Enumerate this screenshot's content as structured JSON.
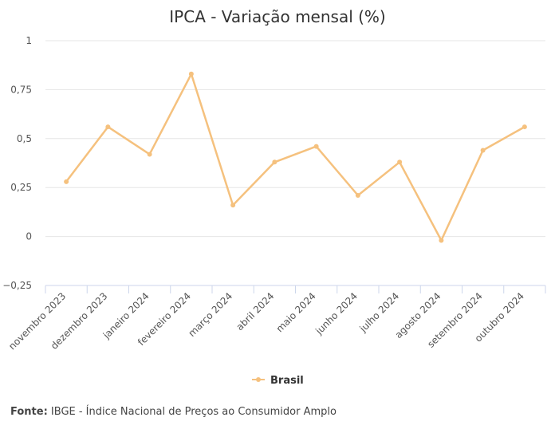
{
  "chart_data": {
    "type": "line",
    "title": "IPCA - Variação mensal (%)",
    "xlabel": "",
    "ylabel": "",
    "categories": [
      "novembro 2023",
      "dezembro 2023",
      "janeiro 2024",
      "fevereiro 2024",
      "março 2024",
      "abril 2024",
      "maio 2024",
      "junho 2024",
      "julho 2024",
      "agosto 2024",
      "setembro 2024",
      "outubro 2024"
    ],
    "series": [
      {
        "name": "Brasil",
        "values": [
          0.28,
          0.56,
          0.42,
          0.83,
          0.16,
          0.38,
          0.46,
          0.21,
          0.38,
          -0.02,
          0.44,
          0.56
        ]
      }
    ],
    "ylim": [
      -0.25,
      1
    ],
    "yticks": [
      {
        "value": 1,
        "label": "1"
      },
      {
        "value": 0.75,
        "label": "0,75"
      },
      {
        "value": 0.5,
        "label": "0,5"
      },
      {
        "value": 0.25,
        "label": "0,25"
      },
      {
        "value": 0,
        "label": "0"
      },
      {
        "value": -0.25,
        "label": "−0,25"
      }
    ],
    "grid": true,
    "legend_position": "bottom-center",
    "series_color": "#f5c17e"
  },
  "source": {
    "label": "Fonte:",
    "text": " IBGE - Índice Nacional de Preços ao Consumidor Amplo"
  }
}
